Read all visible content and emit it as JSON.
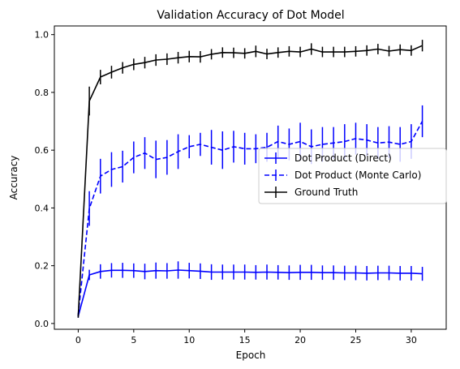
{
  "chart_data": {
    "type": "line",
    "title": "Validation Accuracy of Dot Model",
    "xlabel": "Epoch",
    "ylabel": "Accuracy",
    "xlim": [
      -2.15,
      33.15
    ],
    "ylim": [
      -0.02,
      1.03
    ],
    "xticks": [
      0,
      5,
      10,
      15,
      20,
      25,
      30
    ],
    "yticks": [
      0.0,
      0.2,
      0.4,
      0.6,
      0.8,
      1.0
    ],
    "xtick_labels": [
      "0",
      "5",
      "10",
      "15",
      "20",
      "25",
      "30"
    ],
    "ytick_labels": [
      "0.0",
      "0.2",
      "0.4",
      "0.6",
      "0.8",
      "1.0"
    ],
    "grid": false,
    "legend_position": "center-right",
    "x": [
      0,
      1,
      2,
      3,
      4,
      5,
      6,
      7,
      8,
      9,
      10,
      11,
      12,
      13,
      14,
      15,
      16,
      17,
      18,
      19,
      20,
      21,
      22,
      23,
      24,
      25,
      26,
      27,
      28,
      29,
      30,
      31
    ],
    "series": [
      {
        "name": "Dot Product (Direct)",
        "color": "#0000ff",
        "linestyle": "solid",
        "values": [
          0.025,
          0.168,
          0.18,
          0.184,
          0.184,
          0.183,
          0.18,
          0.183,
          0.182,
          0.185,
          0.183,
          0.181,
          0.178,
          0.178,
          0.178,
          0.178,
          0.177,
          0.178,
          0.177,
          0.176,
          0.177,
          0.177,
          0.176,
          0.176,
          0.175,
          0.175,
          0.174,
          0.175,
          0.175,
          0.174,
          0.174,
          0.172
        ],
        "errors": [
          0.005,
          0.018,
          0.025,
          0.025,
          0.026,
          0.025,
          0.027,
          0.028,
          0.027,
          0.03,
          0.027,
          0.027,
          0.027,
          0.026,
          0.026,
          0.026,
          0.025,
          0.026,
          0.025,
          0.025,
          0.026,
          0.026,
          0.025,
          0.025,
          0.025,
          0.025,
          0.025,
          0.025,
          0.025,
          0.025,
          0.025,
          0.024
        ]
      },
      {
        "name": "Dot Product (Monte Carlo)",
        "color": "#0000ff",
        "linestyle": "dashed",
        "values": [
          0.03,
          0.398,
          0.51,
          0.533,
          0.543,
          0.575,
          0.59,
          0.568,
          0.575,
          0.595,
          0.612,
          0.62,
          0.61,
          0.6,
          0.612,
          0.605,
          0.605,
          0.61,
          0.63,
          0.62,
          0.63,
          0.612,
          0.62,
          0.625,
          0.63,
          0.64,
          0.635,
          0.625,
          0.628,
          0.62,
          0.63,
          0.7
        ]
      },
      {
        "name": "Ground Truth",
        "color": "#000000",
        "linestyle": "solid",
        "values": [
          0.025,
          0.77,
          0.853,
          0.87,
          0.885,
          0.897,
          0.903,
          0.912,
          0.915,
          0.92,
          0.924,
          0.923,
          0.932,
          0.938,
          0.937,
          0.935,
          0.942,
          0.933,
          0.938,
          0.942,
          0.94,
          0.95,
          0.94,
          0.94,
          0.94,
          0.942,
          0.945,
          0.95,
          0.943,
          0.948,
          0.945,
          0.962
        ],
        "errors": [
          0.005,
          0.05,
          0.025,
          0.022,
          0.02,
          0.02,
          0.02,
          0.02,
          0.02,
          0.02,
          0.02,
          0.02,
          0.018,
          0.018,
          0.018,
          0.018,
          0.02,
          0.018,
          0.018,
          0.018,
          0.018,
          0.02,
          0.018,
          0.018,
          0.018,
          0.018,
          0.018,
          0.018,
          0.018,
          0.018,
          0.018,
          0.02
        ]
      }
    ],
    "mc_errors": [
      0.005,
      0.06,
      0.06,
      0.06,
      0.055,
      0.055,
      0.055,
      0.065,
      0.06,
      0.06,
      0.04,
      0.04,
      0.06,
      0.065,
      0.055,
      0.055,
      0.05,
      0.05,
      0.055,
      0.055,
      0.065,
      0.06,
      0.06,
      0.055,
      0.06,
      0.055,
      0.055,
      0.055,
      0.055,
      0.06,
      0.06,
      0.055
    ]
  }
}
